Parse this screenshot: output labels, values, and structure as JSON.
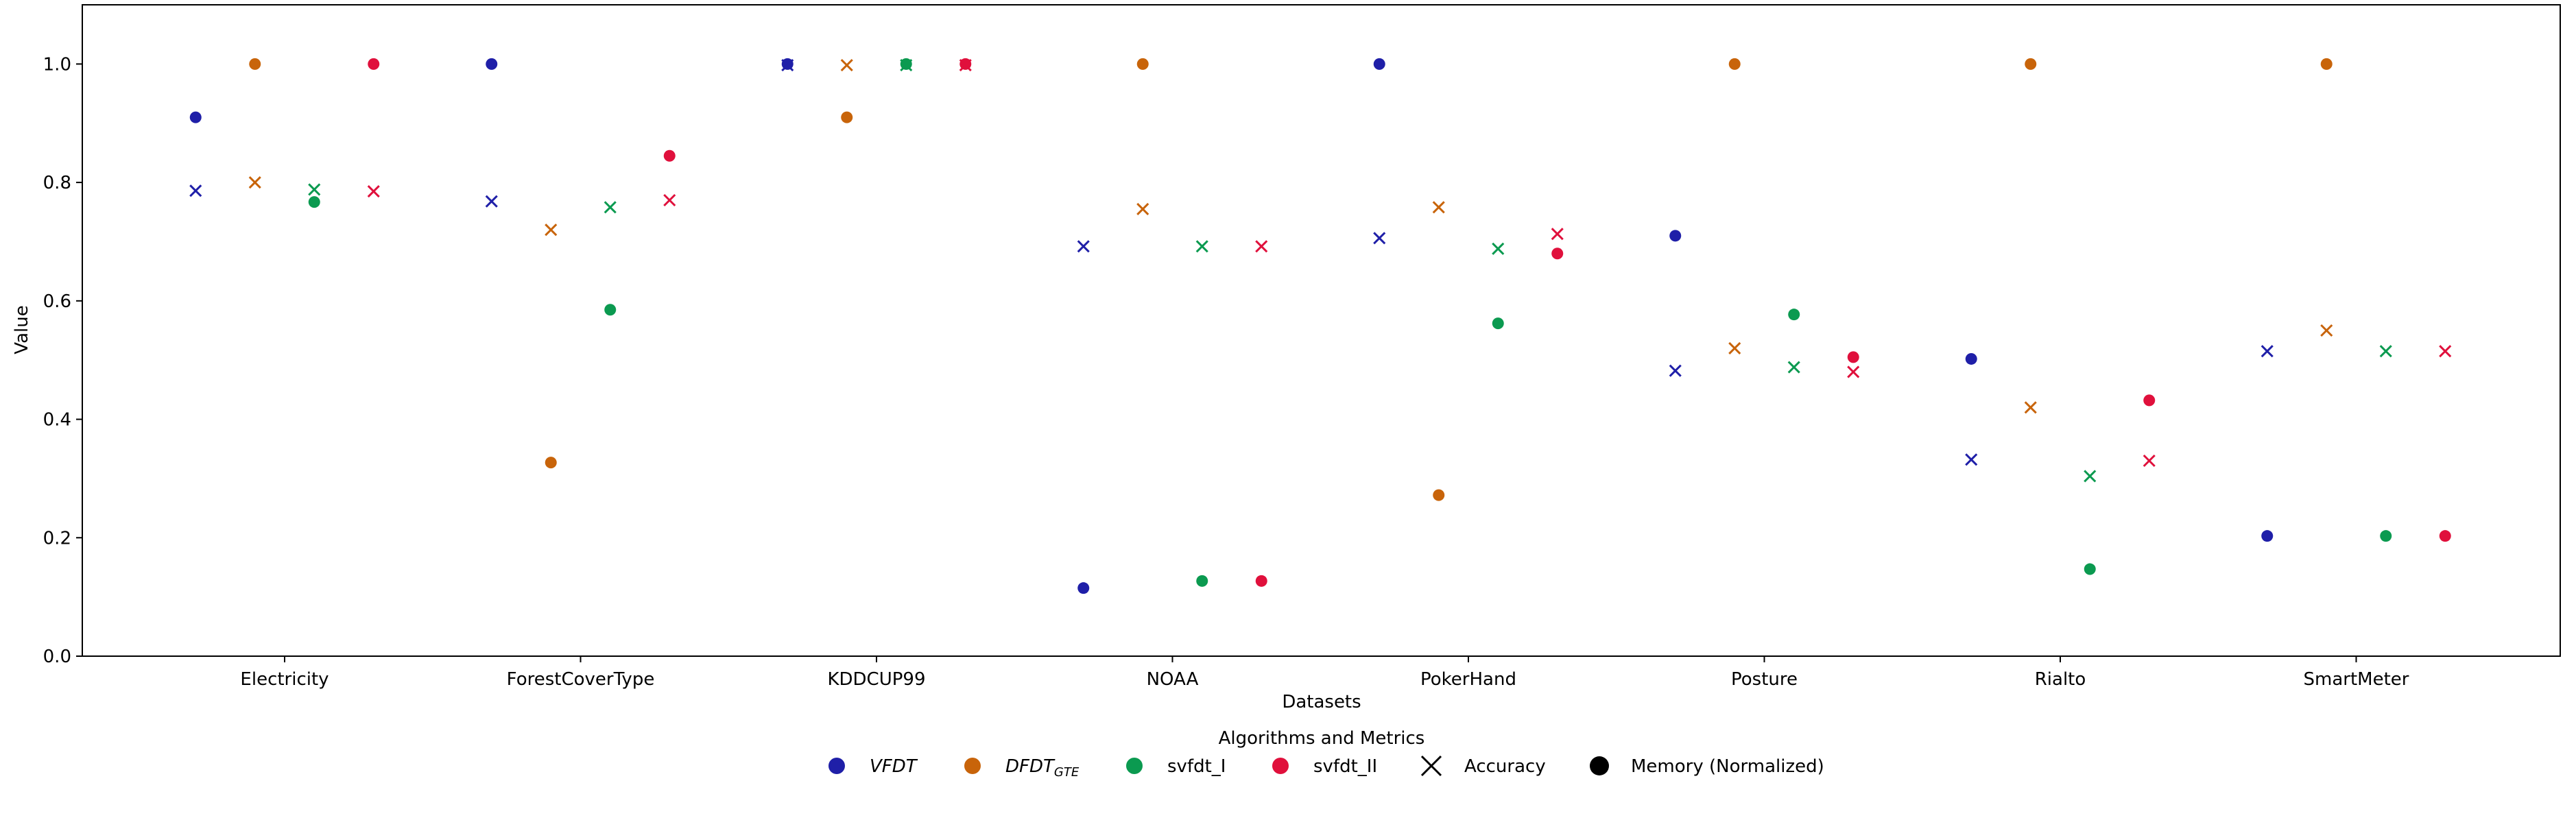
{
  "chart_data": {
    "type": "scatter",
    "xlabel": "Datasets",
    "ylabel": "Value",
    "ylim": [
      0,
      1.1
    ],
    "yticks": [
      "0.0",
      "0.2",
      "0.4",
      "0.6",
      "0.8",
      "1.0"
    ],
    "grid": false,
    "categories": [
      "Electricity",
      "ForestCoverType",
      "KDDCUP99",
      "NOAA",
      "PokerHand",
      "Posture",
      "Rialto",
      "SmartMeter"
    ],
    "series": [
      {
        "name": "VFDT",
        "italic": true,
        "color": "#1f1fa8",
        "accuracy": [
          0.786,
          0.768,
          0.998,
          0.692,
          0.706,
          0.482,
          0.332,
          0.515
        ],
        "memory": [
          0.91,
          1.0,
          1.0,
          0.115,
          1.0,
          0.71,
          0.502,
          0.203
        ]
      },
      {
        "name": "DFDT",
        "subscript": "GTE",
        "italic": true,
        "color": "#c8640a",
        "accuracy": [
          0.8,
          0.72,
          0.998,
          0.755,
          0.758,
          0.52,
          0.42,
          0.55
        ],
        "memory": [
          1.0,
          0.327,
          0.91,
          1.0,
          0.272,
          1.0,
          1.0,
          1.0
        ]
      },
      {
        "name": "svfdt_I",
        "italic": false,
        "color": "#0b9a50",
        "accuracy": [
          0.788,
          0.758,
          0.998,
          0.692,
          0.688,
          0.488,
          0.304,
          0.515
        ],
        "memory": [
          0.767,
          0.585,
          1.0,
          0.127,
          0.562,
          0.577,
          0.147,
          0.203
        ]
      },
      {
        "name": "svfdt_II",
        "italic": false,
        "color": "#e0103c",
        "accuracy": [
          0.785,
          0.77,
          0.998,
          0.692,
          0.713,
          0.48,
          0.33,
          0.515
        ],
        "memory": [
          1.0,
          0.845,
          1.0,
          0.127,
          0.68,
          0.505,
          0.432,
          0.203
        ]
      }
    ],
    "legend": {
      "title": "Algorithms and Metrics",
      "position": "bottom-center",
      "metric_entries": [
        "Accuracy",
        "Memory (Normalized)"
      ]
    }
  }
}
